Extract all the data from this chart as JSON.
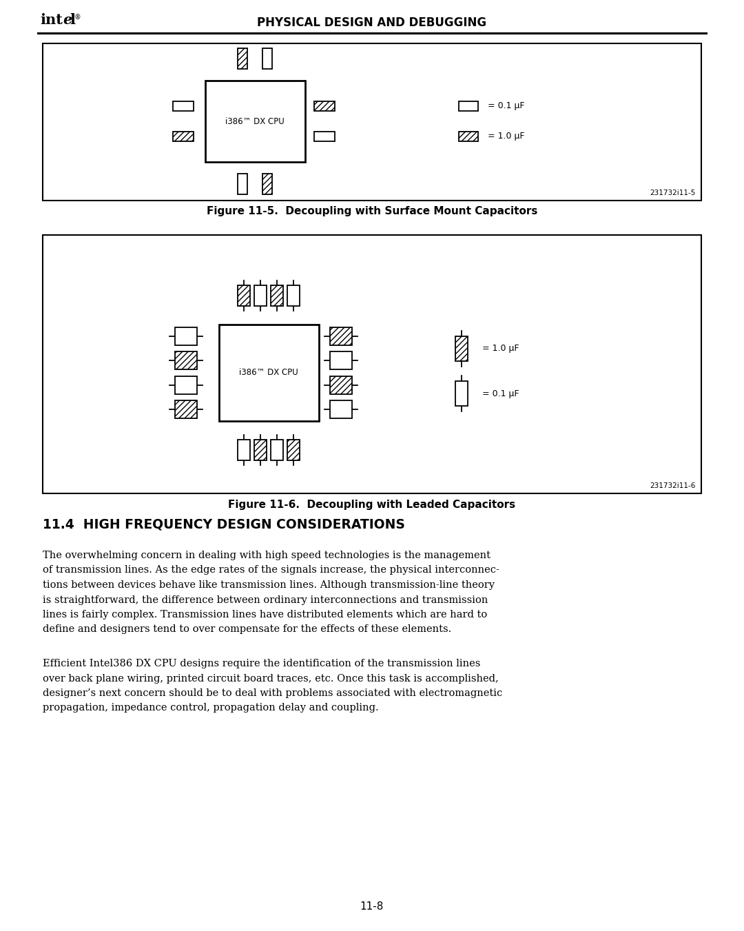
{
  "page_bg": "#ffffff",
  "header_text": "PHYSICAL DESIGN AND DEBUGGING",
  "fig1_title": "Figure 11-5.  Decoupling with Surface Mount Capacitors",
  "fig2_title": "Figure 11-6.  Decoupling with Leaded Capacitors",
  "section_title": "11.4  HIGH FREQUENCY DESIGN CONSIDERATIONS",
  "para1_lines": [
    "The overwhelming concern in dealing with high speed technologies is the management",
    "of transmission lines. As the edge rates of the signals increase, the physical interconnec-",
    "tions between devices behave like transmission lines. Although transmission-line theory",
    "is straightforward, the difference between ordinary interconnections and transmission",
    "lines is fairly complex. Transmission lines have distributed elements which are hard to",
    "define and designers tend to over compensate for the effects of these elements."
  ],
  "para2_lines": [
    "Efficient Intel386 DX CPU designs require the identification of the transmission lines",
    "over back plane wiring, printed circuit board traces, etc. Once this task is accomplished,",
    "designer’s next concern should be to deal with problems associated with electromagnetic",
    "propagation, impedance control, propagation delay and coupling."
  ],
  "page_num": "11-8",
  "fig1_ref": "231732i11-5",
  "fig2_ref": "231732i11-6",
  "cpu_label": "i386™ DX CPU"
}
